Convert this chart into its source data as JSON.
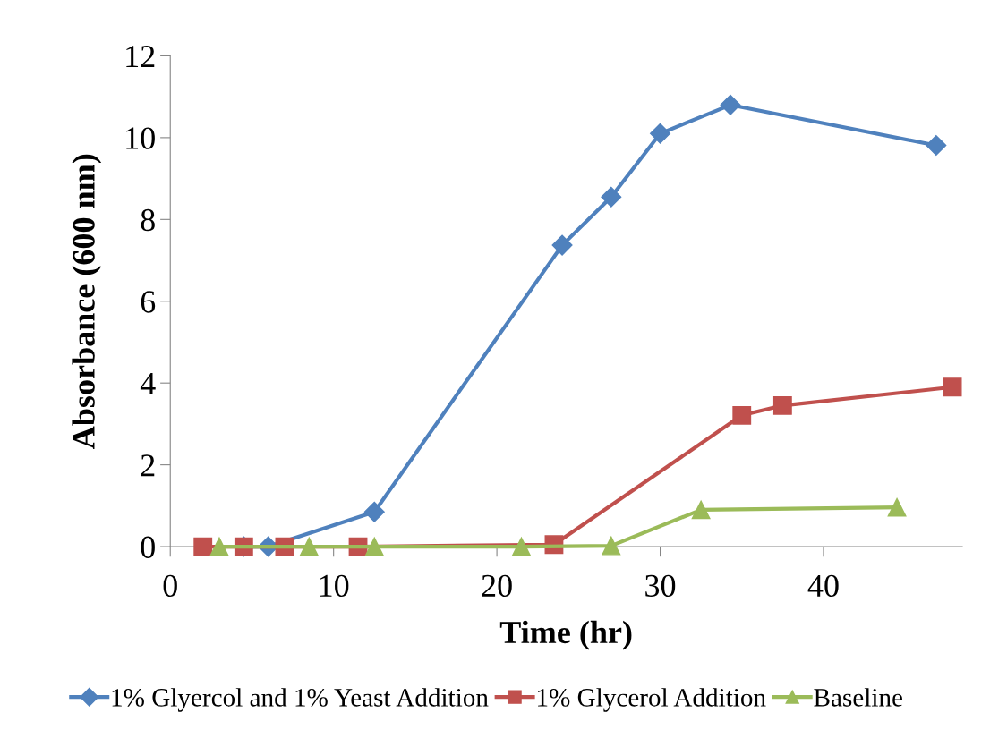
{
  "chart_data": {
    "type": "line",
    "xlabel": "Time (hr)",
    "ylabel": "Absorbance (600 nm)",
    "xlim": [
      0,
      48.5
    ],
    "xticks": [
      0,
      10,
      20,
      30,
      40
    ],
    "ylim": [
      0,
      12
    ],
    "yticks": [
      0,
      2,
      4,
      6,
      8,
      10,
      12
    ],
    "grid": false,
    "legend": "bottom",
    "line_style": "solid",
    "series": [
      {
        "name": "1% Glyercol and 1% Yeast Addition",
        "color": "#4f81bd",
        "marker": "diamond",
        "x": [
          4.5,
          6.0,
          12.5,
          24.0,
          27.0,
          30.0,
          34.3,
          46.9
        ],
        "values": [
          0,
          0,
          0.85,
          7.37,
          8.55,
          10.1,
          10.8,
          9.81
        ]
      },
      {
        "name": "1% Glycerol Addition",
        "color": "#c0504d",
        "marker": "square",
        "x": [
          2.0,
          4.5,
          7.0,
          11.5,
          23.5,
          35.0,
          37.5,
          47.9
        ],
        "values": [
          0,
          0,
          0,
          0,
          0.05,
          3.21,
          3.45,
          3.9
        ]
      },
      {
        "name": "Baseline",
        "color": "#9bbb59",
        "marker": "triangle",
        "x": [
          3.0,
          8.5,
          12.5,
          21.5,
          27.0,
          32.5,
          44.5
        ],
        "values": [
          0,
          0,
          0,
          0,
          0.02,
          0.9,
          0.96
        ]
      }
    ]
  }
}
